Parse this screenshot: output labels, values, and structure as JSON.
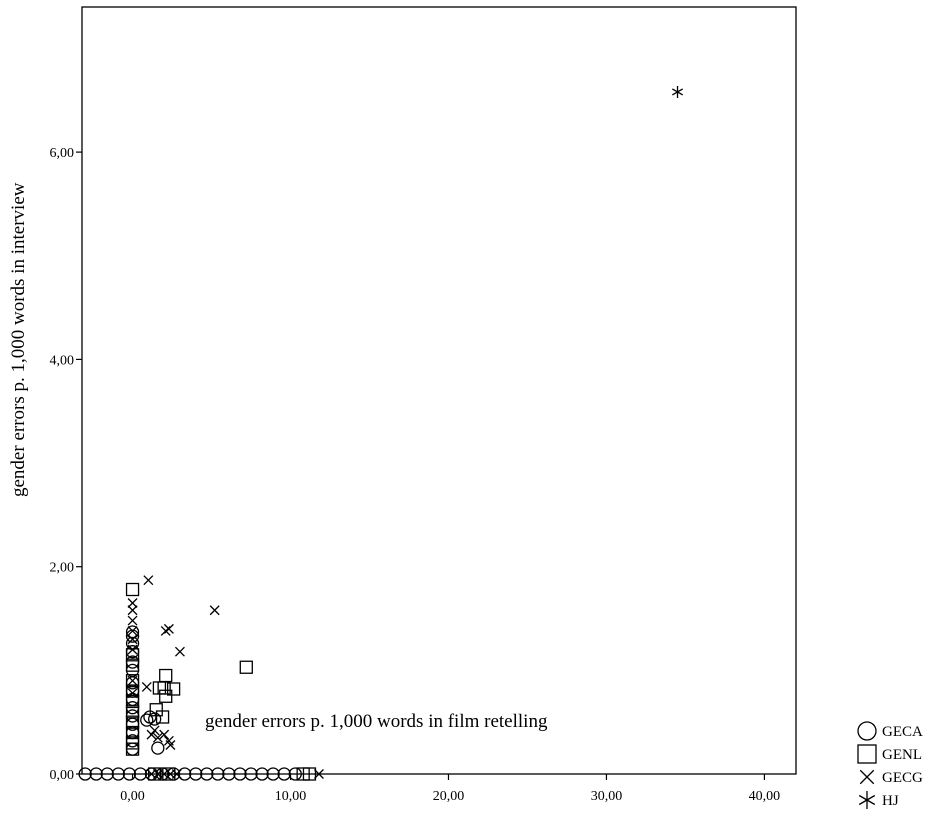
{
  "chart_data": {
    "type": "scatter",
    "xlabel": "gender errors p. 1,000 words in film retelling",
    "ylabel": "gender errors p. 1,000 words in interview",
    "xlim": [
      -3.2,
      42.0
    ],
    "ylim": [
      0.0,
      7.4
    ],
    "xticks": [
      "0,00",
      "10,00",
      "20,00",
      "30,00",
      "40,00"
    ],
    "xtick_values": [
      0,
      10,
      20,
      30,
      40
    ],
    "yticks": [
      "0,00",
      "2,00",
      "4,00",
      "6,00"
    ],
    "ytick_values": [
      0,
      2,
      4,
      6
    ],
    "grid": false,
    "legend_position": "bottom-right, outside plot",
    "series": [
      {
        "name": "GECA",
        "marker": "circle",
        "points": [
          [
            -3.0,
            0
          ],
          [
            -2.3,
            0
          ],
          [
            -1.6,
            0
          ],
          [
            -0.9,
            0
          ],
          [
            -0.2,
            0
          ],
          [
            0.5,
            0
          ],
          [
            1.2,
            0
          ],
          [
            1.9,
            0
          ],
          [
            2.6,
            0
          ],
          [
            3.3,
            0
          ],
          [
            4.0,
            0
          ],
          [
            4.7,
            0
          ],
          [
            5.4,
            0
          ],
          [
            6.1,
            0
          ],
          [
            6.8,
            0
          ],
          [
            7.5,
            0
          ],
          [
            8.2,
            0
          ],
          [
            8.9,
            0
          ],
          [
            9.6,
            0
          ],
          [
            10.3,
            0
          ],
          [
            0,
            0.24
          ],
          [
            0,
            0.32
          ],
          [
            0,
            0.4
          ],
          [
            0,
            0.48
          ],
          [
            0,
            0.56
          ],
          [
            0,
            0.64
          ],
          [
            0,
            0.72
          ],
          [
            0,
            0.8
          ],
          [
            0,
            0.88
          ],
          [
            0,
            1.0
          ],
          [
            0,
            1.08
          ],
          [
            0,
            1.18
          ],
          [
            0,
            1.26
          ],
          [
            0,
            1.33
          ],
          [
            0,
            1.37
          ],
          [
            0.9,
            0.52
          ],
          [
            1.1,
            0.55
          ],
          [
            1.4,
            0.53
          ],
          [
            1.6,
            0.25
          ]
        ]
      },
      {
        "name": "GENL",
        "marker": "square",
        "points": [
          [
            0,
            1.78
          ],
          [
            0,
            1.15
          ],
          [
            0,
            1.05
          ],
          [
            0,
            0.9
          ],
          [
            0,
            0.8
          ],
          [
            0,
            0.7
          ],
          [
            0,
            0.6
          ],
          [
            0,
            0.5
          ],
          [
            0,
            0.4
          ],
          [
            0,
            0.3
          ],
          [
            0,
            0.24
          ],
          [
            1.5,
            0.62
          ],
          [
            1.7,
            0.83
          ],
          [
            2.0,
            0.83
          ],
          [
            2.1,
            0.95
          ],
          [
            2.1,
            0.75
          ],
          [
            2.6,
            0.82
          ],
          [
            1.9,
            0.55
          ],
          [
            7.2,
            1.03
          ],
          [
            10.8,
            0
          ],
          [
            11.2,
            0
          ],
          [
            1.4,
            0
          ],
          [
            2.3,
            0
          ]
        ]
      },
      {
        "name": "GECG",
        "marker": "x",
        "points": [
          [
            0,
            1.65
          ],
          [
            0,
            1.58
          ],
          [
            0,
            1.48
          ],
          [
            0,
            1.38
          ],
          [
            0,
            1.3
          ],
          [
            0,
            1.2
          ],
          [
            0,
            0.9
          ],
          [
            0,
            0.78
          ],
          [
            1.0,
            1.87
          ],
          [
            2.1,
            1.38
          ],
          [
            2.3,
            1.4
          ],
          [
            3.0,
            1.18
          ],
          [
            5.2,
            1.58
          ],
          [
            0.9,
            0.84
          ],
          [
            1.2,
            0.38
          ],
          [
            1.4,
            0.42
          ],
          [
            1.6,
            0.35
          ],
          [
            2.0,
            0.38
          ],
          [
            2.3,
            0.32
          ],
          [
            2.4,
            0.28
          ],
          [
            1.2,
            0
          ],
          [
            1.6,
            0
          ],
          [
            2.0,
            0
          ],
          [
            2.4,
            0
          ],
          [
            2.8,
            0
          ],
          [
            11.8,
            0
          ]
        ]
      },
      {
        "name": "HJ",
        "marker": "star",
        "points": [
          [
            34.5,
            6.58
          ]
        ]
      }
    ]
  }
}
